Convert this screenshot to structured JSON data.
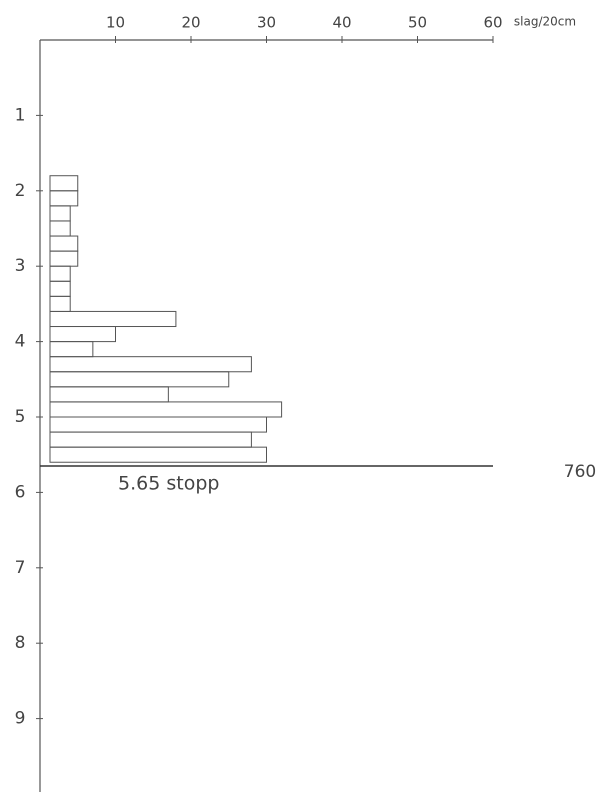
{
  "chart_data": {
    "type": "histogram",
    "orientation": "horizontal",
    "x_label": "slag/20cm",
    "xlim": [
      0,
      60
    ],
    "xticks": [
      10,
      20,
      30,
      40,
      50,
      60
    ],
    "ylim": [
      0,
      10
    ],
    "yticks": [
      1,
      2,
      3,
      4,
      5,
      6,
      7,
      8,
      9
    ],
    "bins": [
      1.8,
      2.0,
      2.2,
      2.4,
      2.6,
      2.8,
      3.0,
      3.2,
      3.4,
      3.6,
      3.8,
      4.0,
      4.2,
      4.4,
      4.6,
      4.8,
      5.0,
      5.2,
      5.4,
      5.6
    ],
    "values": [
      5,
      5,
      4,
      4,
      5,
      5,
      4,
      4,
      4,
      18,
      10,
      7,
      28,
      25,
      17,
      32,
      30,
      28,
      30
    ],
    "color": "#555555",
    "stop": {
      "value": 5.65,
      "label": "5.65 stopp"
    },
    "side_note": "760"
  }
}
